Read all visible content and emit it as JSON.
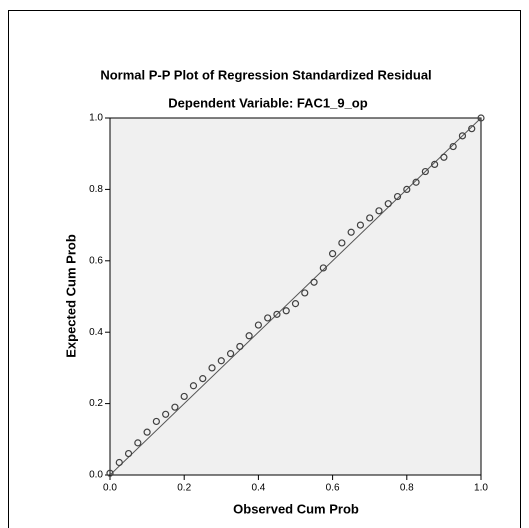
{
  "chart_data": {
    "type": "scatter",
    "title": "Normal P-P Plot of Regression Standardized Residual",
    "subtitle": "Dependent Variable: FAC1_9_op",
    "x_label": "Observed Cum Prob",
    "y_label": "Expected Cum Prob",
    "x": [
      0,
      0.025,
      0.05,
      0.075,
      0.1,
      0.125,
      0.15,
      0.175,
      0.2,
      0.225,
      0.25,
      0.275,
      0.3,
      0.325,
      0.35,
      0.375,
      0.4,
      0.425,
      0.45,
      0.475,
      0.5,
      0.525,
      0.55,
      0.575,
      0.6,
      0.625,
      0.65,
      0.675,
      0.7,
      0.725,
      0.75,
      0.775,
      0.8,
      0.825,
      0.85,
      0.875,
      0.9,
      0.925,
      0.95,
      0.975,
      1
    ],
    "values": [
      0.005,
      0.035,
      0.06,
      0.09,
      0.12,
      0.15,
      0.17,
      0.19,
      0.22,
      0.25,
      0.27,
      0.3,
      0.32,
      0.34,
      0.36,
      0.39,
      0.42,
      0.44,
      0.45,
      0.46,
      0.48,
      0.51,
      0.54,
      0.58,
      0.62,
      0.65,
      0.68,
      0.7,
      0.72,
      0.74,
      0.76,
      0.78,
      0.8,
      0.82,
      0.85,
      0.87,
      0.89,
      0.92,
      0.95,
      0.97,
      1
    ],
    "color": "#404040",
    "xlim": [
      0,
      1
    ],
    "ylim": [
      0,
      1
    ],
    "xticks": [
      {
        "value": 0,
        "label": "0.0"
      },
      0.2,
      0.4,
      0.6,
      0.8,
      {
        "value": 1,
        "label": "1.0"
      }
    ],
    "yticks": [
      {
        "value": 0,
        "label": "0.0"
      },
      0.2,
      0.4,
      0.6,
      0.8,
      {
        "value": 1,
        "label": "1.0"
      }
    ],
    "reference_line": true
  }
}
